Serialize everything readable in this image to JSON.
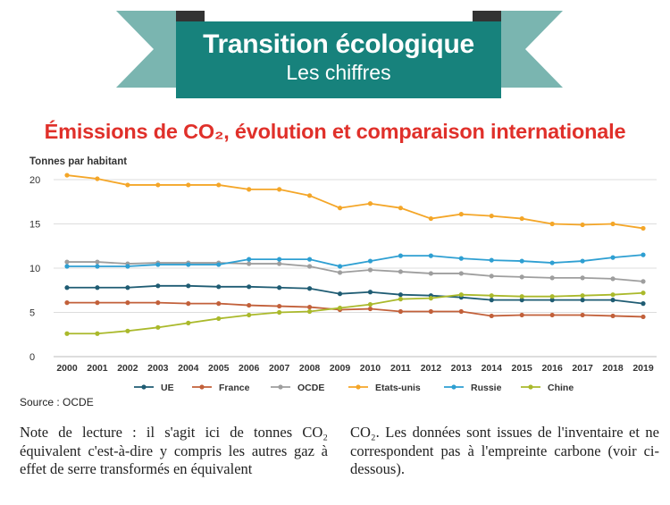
{
  "banner": {
    "title": "Transition écologique",
    "subtitle": "Les chiffres",
    "colors": {
      "box": "#17827c",
      "ribbon_end": "#7ab5b0",
      "fold": "#333333"
    }
  },
  "chart_title": "Émissions de CO₂, évolution et comparaison internationale",
  "source": "Source : OCDE",
  "note": {
    "left": "Note de lecture : il s'agit ici de tonnes CO₂ équivalent c'est-à-dire y compris les autres gaz à effet de serre transformés en équivalent",
    "right": "CO₂. Les données sont issues de l'inventaire et ne correspondent pas à l'empreinte carbone (voir ci-dessous)."
  },
  "chart_data": {
    "type": "line",
    "title": "Émissions de CO₂, évolution et comparaison internationale",
    "ylabel": "Tonnes par habitant",
    "xlabel": "",
    "ylim": [
      0,
      20
    ],
    "yticks": [
      0,
      5,
      10,
      15,
      20
    ],
    "grid": true,
    "legend": "bottom",
    "categories": [
      "2000",
      "2001",
      "2002",
      "2003",
      "2004",
      "2005",
      "2006",
      "2007",
      "2008",
      "2009",
      "2010",
      "2011",
      "2012",
      "2013",
      "2014",
      "2015",
      "2016",
      "2017",
      "2018",
      "2019"
    ],
    "series": [
      {
        "name": "UE",
        "color": "#1f5c73",
        "values": [
          7.8,
          7.8,
          7.8,
          8.0,
          8.0,
          7.9,
          7.9,
          7.8,
          7.7,
          7.1,
          7.3,
          7.0,
          6.9,
          6.7,
          6.4,
          6.4,
          6.4,
          6.4,
          6.4,
          6.0
        ]
      },
      {
        "name": "France",
        "color": "#c2603a",
        "values": [
          6.1,
          6.1,
          6.1,
          6.1,
          6.0,
          6.0,
          5.8,
          5.7,
          5.6,
          5.3,
          5.4,
          5.1,
          5.1,
          5.1,
          4.6,
          4.7,
          4.7,
          4.7,
          4.6,
          4.5
        ]
      },
      {
        "name": "OCDE",
        "color": "#9e9e9e",
        "values": [
          10.7,
          10.7,
          10.5,
          10.6,
          10.6,
          10.6,
          10.5,
          10.5,
          10.2,
          9.5,
          9.8,
          9.6,
          9.4,
          9.4,
          9.1,
          9.0,
          8.9,
          8.9,
          8.8,
          8.5
        ]
      },
      {
        "name": "Etats-unis",
        "color": "#f4a628",
        "values": [
          20.5,
          20.1,
          19.4,
          19.4,
          19.4,
          19.4,
          18.9,
          18.9,
          18.2,
          16.8,
          17.3,
          16.8,
          15.6,
          16.1,
          15.9,
          15.6,
          15.0,
          14.9,
          15.0,
          14.5
        ]
      },
      {
        "name": "Russie",
        "color": "#2e9fd2",
        "values": [
          10.2,
          10.2,
          10.2,
          10.4,
          10.4,
          10.4,
          11.0,
          11.0,
          11.0,
          10.2,
          10.8,
          11.4,
          11.4,
          11.1,
          10.9,
          10.8,
          10.6,
          10.8,
          11.2,
          11.5
        ]
      },
      {
        "name": "Chine",
        "color": "#aab92b",
        "values": [
          2.6,
          2.6,
          2.9,
          3.3,
          3.8,
          4.3,
          4.7,
          5.0,
          5.1,
          5.5,
          5.9,
          6.5,
          6.6,
          7.0,
          6.9,
          6.8,
          6.8,
          6.9,
          7.0,
          7.2
        ]
      }
    ]
  }
}
